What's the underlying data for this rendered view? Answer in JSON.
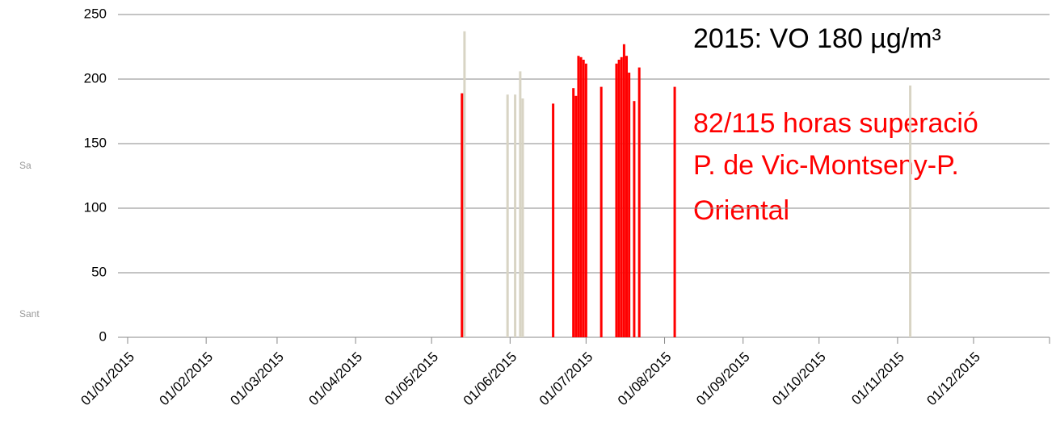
{
  "chart_data": {
    "type": "bar",
    "annotations": [
      "2015: VO  180 µg/m³"
    ],
    "highlight_lines": [
      "82/115 horas superació",
      "P. de Vic-Montseny-P.",
      "Oriental"
    ],
    "side_labels": [
      "Sa",
      "Sant"
    ],
    "series": [
      {
        "color": "#ff0000",
        "x": [
          "13/05/2015",
          "18/06/2015",
          "26/06/2015",
          "27/06/2015",
          "28/06/2015",
          "29/06/2015",
          "30/06/2015",
          "01/07/2015",
          "07/07/2015",
          "13/07/2015",
          "14/07/2015",
          "15/07/2015",
          "16/07/2015",
          "17/07/2015",
          "18/07/2015",
          "20/07/2015",
          "22/07/2015",
          "05/08/2015"
        ],
        "values": [
          189,
          181,
          193,
          187,
          218,
          217,
          215,
          212,
          194,
          212,
          215,
          217,
          227,
          218,
          205,
          183,
          209,
          194
        ]
      },
      {
        "color": "#d8d4c4",
        "x": [
          "14/05/2015",
          "31/05/2015",
          "03/06/2015",
          "05/06/2015",
          "06/06/2015",
          "06/11/2015"
        ],
        "values": [
          237,
          188,
          188,
          206,
          185,
          195
        ]
      }
    ],
    "xlim": [
      "01/01/2015",
      "31/12/2015"
    ],
    "xticks": [
      "01/01/2015",
      "01/02/2015",
      "01/03/2015",
      "01/04/2015",
      "01/05/2015",
      "01/06/2015",
      "01/07/2015",
      "01/08/2015",
      "01/09/2015",
      "01/10/2015",
      "01/11/2015",
      "01/12/2015"
    ],
    "ylim": [
      0,
      250
    ],
    "yticks": [
      0,
      50,
      100,
      150,
      200,
      250
    ],
    "grid": true
  }
}
